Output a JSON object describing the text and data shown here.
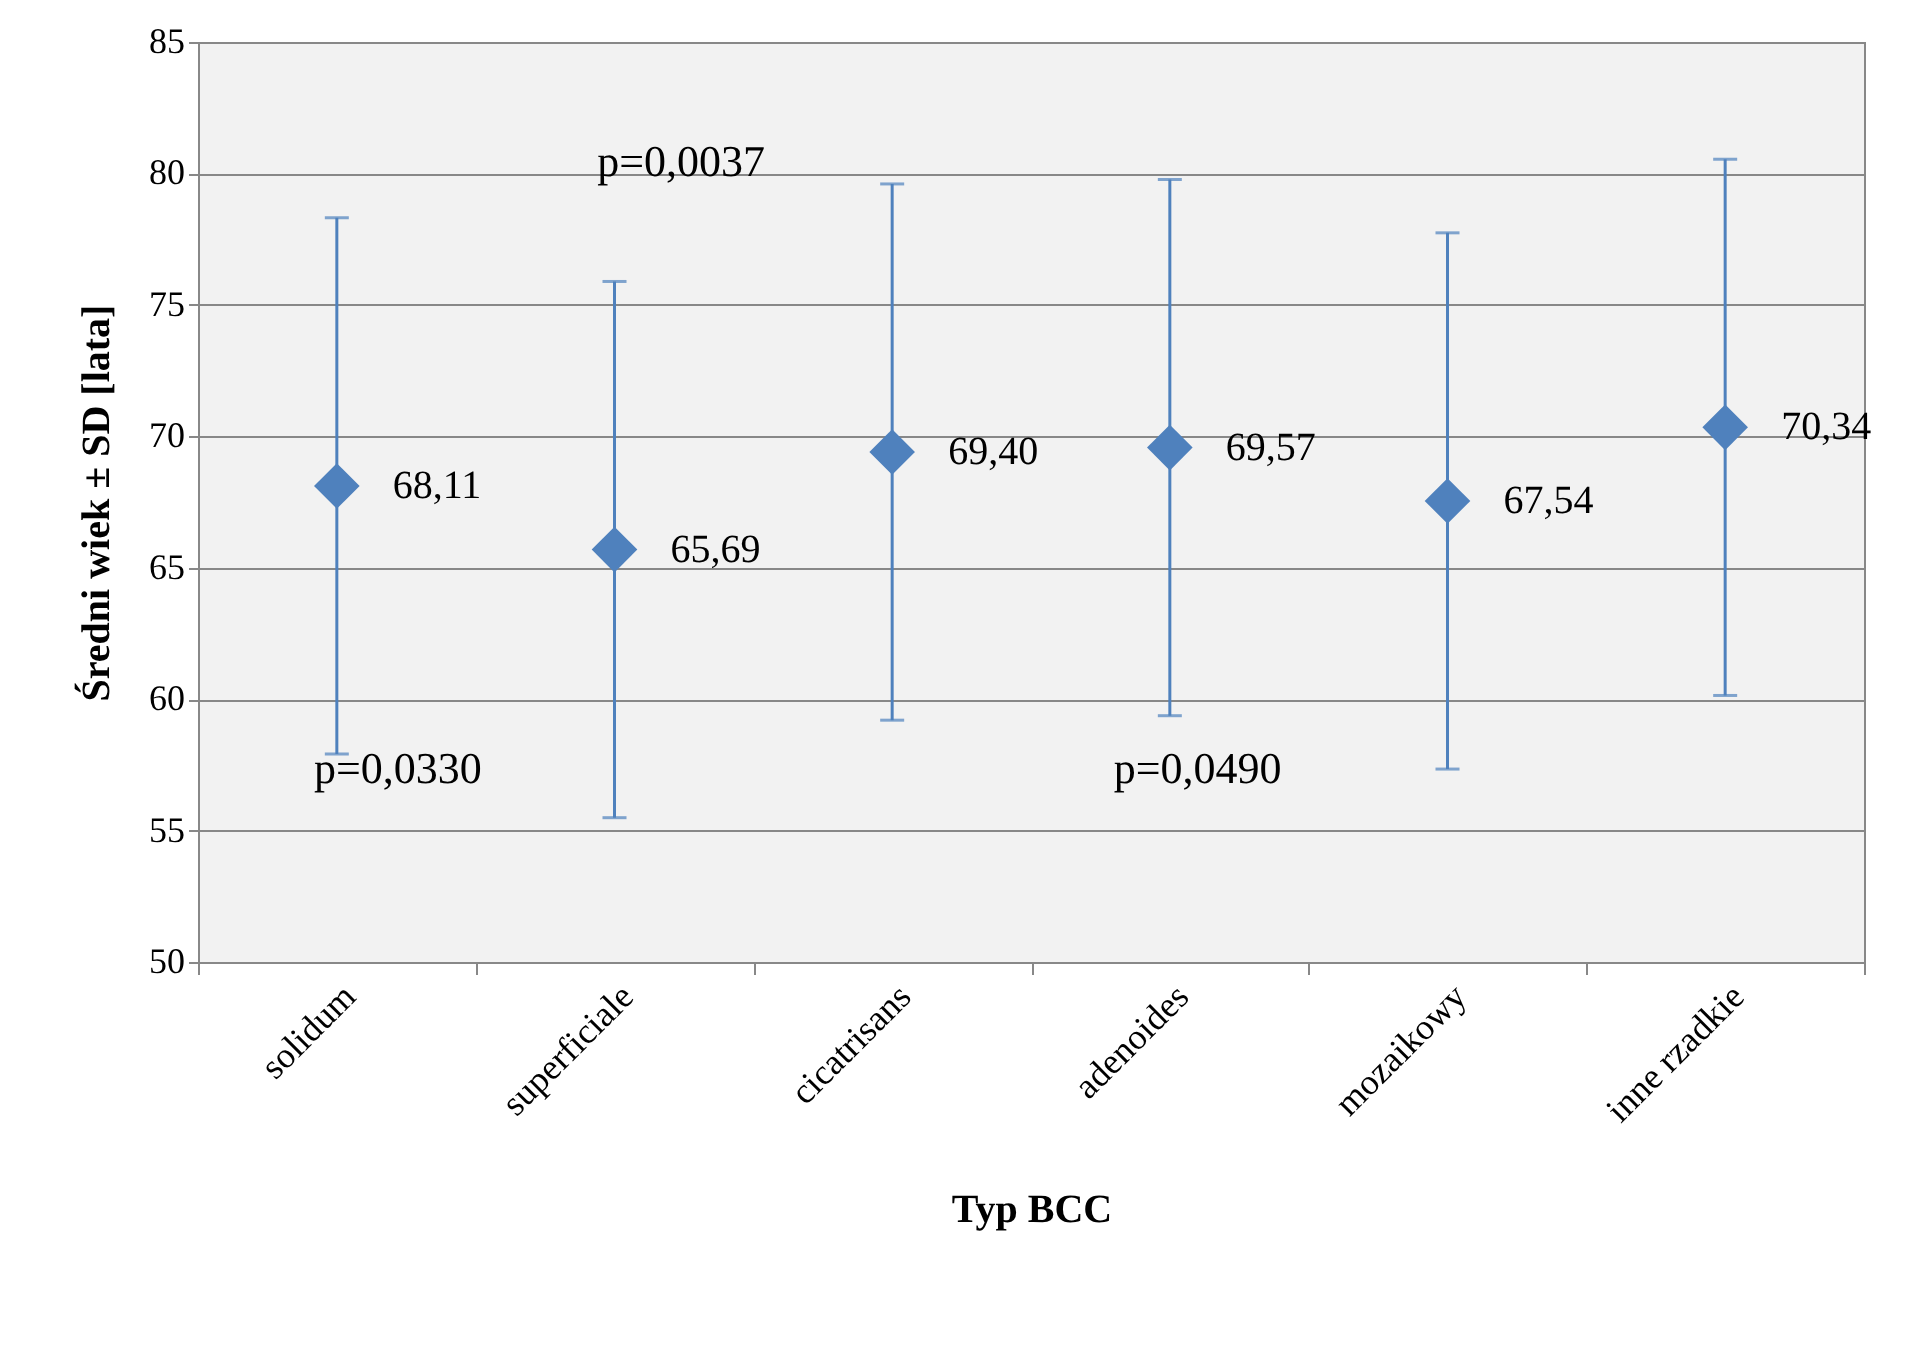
{
  "chart_data": {
    "type": "scatter",
    "xlabel": "Typ BCC",
    "ylabel": "Średni wiek ± SD [lata]",
    "categories": [
      "solidum",
      "superficiale",
      "cicatrisans",
      "adenoides",
      "mozaikowy",
      "inne rzadkie"
    ],
    "series": [
      {
        "color": "#4f81bd",
        "values": [
          68.11,
          65.69,
          69.4,
          69.57,
          67.54,
          70.34
        ],
        "errors": [
          10.2,
          10.2,
          10.2,
          10.2,
          10.2,
          10.2
        ],
        "value_labels": [
          "68,11",
          "65,69",
          "69,40",
          "69,57",
          "67,54",
          "70,34"
        ]
      }
    ],
    "ylim": [
      50,
      85
    ],
    "yticks": [
      50,
      55,
      60,
      65,
      70,
      75,
      80,
      85
    ],
    "annotations": [
      "p=0,0037",
      "p=0,0330",
      "p=0,0490"
    ],
    "grid": "y",
    "marker": "diamond"
  }
}
